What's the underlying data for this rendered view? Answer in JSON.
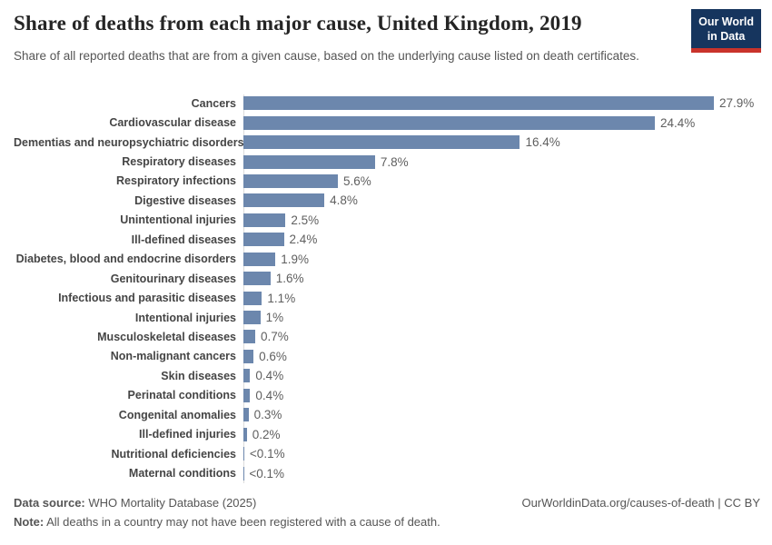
{
  "header": {
    "title": "Share of deaths from each major cause, United Kingdom, 2019",
    "subtitle": "Share of all reported deaths that are from a given cause, based on the underlying cause listed on death certificates."
  },
  "logo": {
    "line1": "Our World",
    "line2": "in Data"
  },
  "chart_data": {
    "type": "bar",
    "orientation": "horizontal",
    "title": "Share of deaths from each major cause, United Kingdom, 2019",
    "xlabel": "",
    "ylabel": "",
    "value_unit": "%",
    "xlim": [
      0,
      27.9
    ],
    "grid": false,
    "legend": false,
    "categories": [
      "Cancers",
      "Cardiovascular disease",
      "Dementias and neuropsychiatric disorders",
      "Respiratory diseases",
      "Respiratory infections",
      "Digestive diseases",
      "Unintentional injuries",
      "Ill-defined diseases",
      "Diabetes, blood and endocrine disorders",
      "Genitourinary diseases",
      "Infectious and parasitic diseases",
      "Intentional injuries",
      "Musculoskeletal diseases",
      "Non-malignant cancers",
      "Skin diseases",
      "Perinatal conditions",
      "Congenital anomalies",
      "Ill-defined injuries",
      "Nutritional deficiencies",
      "Maternal conditions"
    ],
    "values": [
      27.9,
      24.4,
      16.4,
      7.8,
      5.6,
      4.8,
      2.5,
      2.4,
      1.9,
      1.6,
      1.1,
      1,
      0.7,
      0.6,
      0.4,
      0.4,
      0.3,
      0.2,
      0.05,
      0.02
    ],
    "value_labels": [
      "27.9%",
      "24.4%",
      "16.4%",
      "7.8%",
      "5.6%",
      "4.8%",
      "2.5%",
      "2.4%",
      "1.9%",
      "1.6%",
      "1.1%",
      "1%",
      "0.7%",
      "0.6%",
      "0.4%",
      "0.4%",
      "0.3%",
      "0.2%",
      "<0.1%",
      "<0.1%"
    ]
  },
  "footer": {
    "source_label": "Data source:",
    "source_text": " WHO Mortality Database (2025)",
    "note_label": "Note:",
    "note_text": " All deaths in a country may not have been registered with a cause of death.",
    "credit": "OurWorldinData.org/causes-of-death | CC BY"
  },
  "colors": {
    "bar": "#6c87ad",
    "axis_line": "#dcdcdc",
    "logo_bg": "#16355e",
    "logo_accent": "#c9332b"
  }
}
